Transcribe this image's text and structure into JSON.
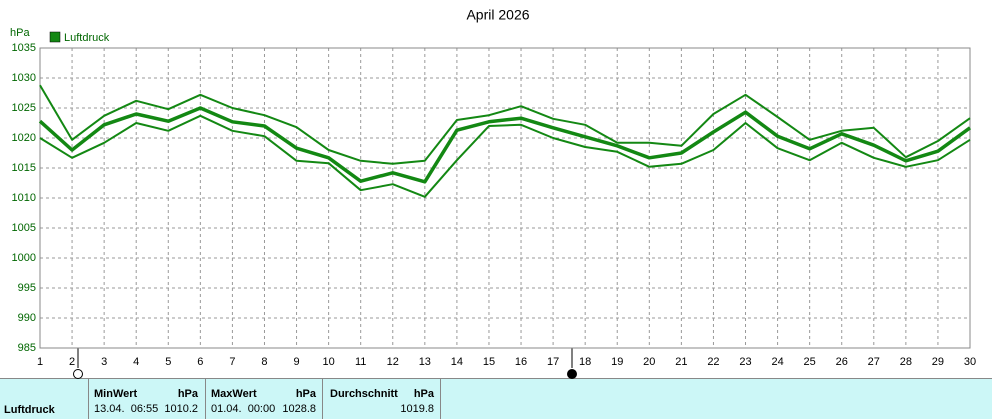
{
  "chart_data": {
    "type": "line",
    "title": "April 2026",
    "y_label": "hPa",
    "x": [
      1,
      2,
      3,
      4,
      5,
      6,
      7,
      8,
      9,
      10,
      11,
      12,
      13,
      14,
      15,
      16,
      17,
      18,
      19,
      20,
      21,
      22,
      23,
      24,
      25,
      26,
      27,
      28,
      29,
      30
    ],
    "series": [
      {
        "name": "Luftdruck",
        "color": "#138813",
        "values": [
          1022.8,
          1018,
          1022.2,
          1024,
          1022.8,
          1025,
          1022.7,
          1022,
          1018.3,
          1016.7,
          1012.8,
          1014.2,
          1012.7,
          1021.3,
          1022.7,
          1023.3,
          1021.7,
          1020.2,
          1018.7,
          1016.7,
          1017.5,
          1021,
          1024.3,
          1020.3,
          1018.2,
          1020.7,
          1018.8,
          1016.2,
          1017.8,
          1021.7
        ],
        "max": [
          1028.8,
          1019.7,
          1023.7,
          1026.2,
          1024.8,
          1027.2,
          1025,
          1023.8,
          1021.8,
          1018,
          1016.2,
          1015.7,
          1016.2,
          1023,
          1023.8,
          1025.3,
          1023.2,
          1022.2,
          1019.2,
          1019.2,
          1018.7,
          1024,
          1027.2,
          1023.5,
          1019.7,
          1021.2,
          1021.7,
          1016.8,
          1019.5,
          1023.3
        ],
        "min": [
          1020,
          1016.7,
          1019.2,
          1022.5,
          1021.2,
          1023.7,
          1021.2,
          1020.3,
          1016.2,
          1015.8,
          1011.3,
          1012.3,
          1010.2,
          1016.3,
          1022,
          1022.2,
          1020,
          1018.5,
          1017.7,
          1015.2,
          1015.7,
          1018,
          1022.5,
          1018.3,
          1016.3,
          1019.2,
          1016.7,
          1015.2,
          1016.3,
          1019.7
        ]
      }
    ],
    "xlim": [
      1,
      30
    ],
    "xticks": [
      1,
      2,
      3,
      4,
      5,
      6,
      7,
      8,
      9,
      10,
      11,
      12,
      13,
      14,
      15,
      16,
      17,
      18,
      19,
      20,
      21,
      22,
      23,
      24,
      25,
      26,
      27,
      28,
      29,
      30
    ],
    "ylim": [
      985,
      1035
    ],
    "yticks": [
      985,
      990,
      995,
      1000,
      1005,
      1010,
      1015,
      1020,
      1025,
      1030,
      1035
    ],
    "grid": true
  },
  "footer": {
    "row_label": "Luftdruck",
    "columns": [
      {
        "title": "MinWert",
        "unit": "hPa",
        "time": "13.04.  06:55",
        "value": 1010.2
      },
      {
        "title": "MaxWert",
        "unit": "hPa",
        "time": "01.04.  00:00",
        "value": 1028.8
      },
      {
        "title": "Durchschnitt",
        "unit": "hPa",
        "value": 1019.8
      }
    ]
  }
}
